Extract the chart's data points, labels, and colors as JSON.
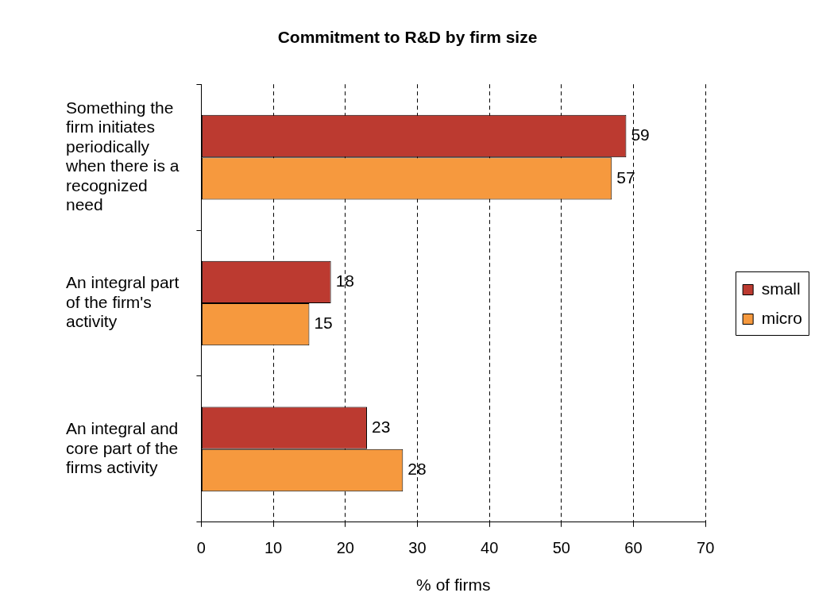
{
  "chart_data": {
    "type": "bar",
    "orientation": "horizontal",
    "title": "Commitment to R&D by firm size",
    "xlabel": "% of firms",
    "categories": [
      "Something the firm initiates periodically when there is a recognized need",
      "An integral part of the firm's activity",
      "An integral and core part of the firms activity"
    ],
    "series": [
      {
        "name": "small",
        "color": "#bc3a30",
        "values": [
          59,
          18,
          23
        ]
      },
      {
        "name": "micro",
        "color": "#f6993e",
        "values": [
          57,
          15,
          28
        ]
      }
    ],
    "xlim": [
      0,
      70
    ],
    "xticks": [
      0,
      10,
      20,
      30,
      40,
      50,
      60,
      70
    ],
    "grid": "x",
    "legend": "right",
    "data_labels": true
  }
}
